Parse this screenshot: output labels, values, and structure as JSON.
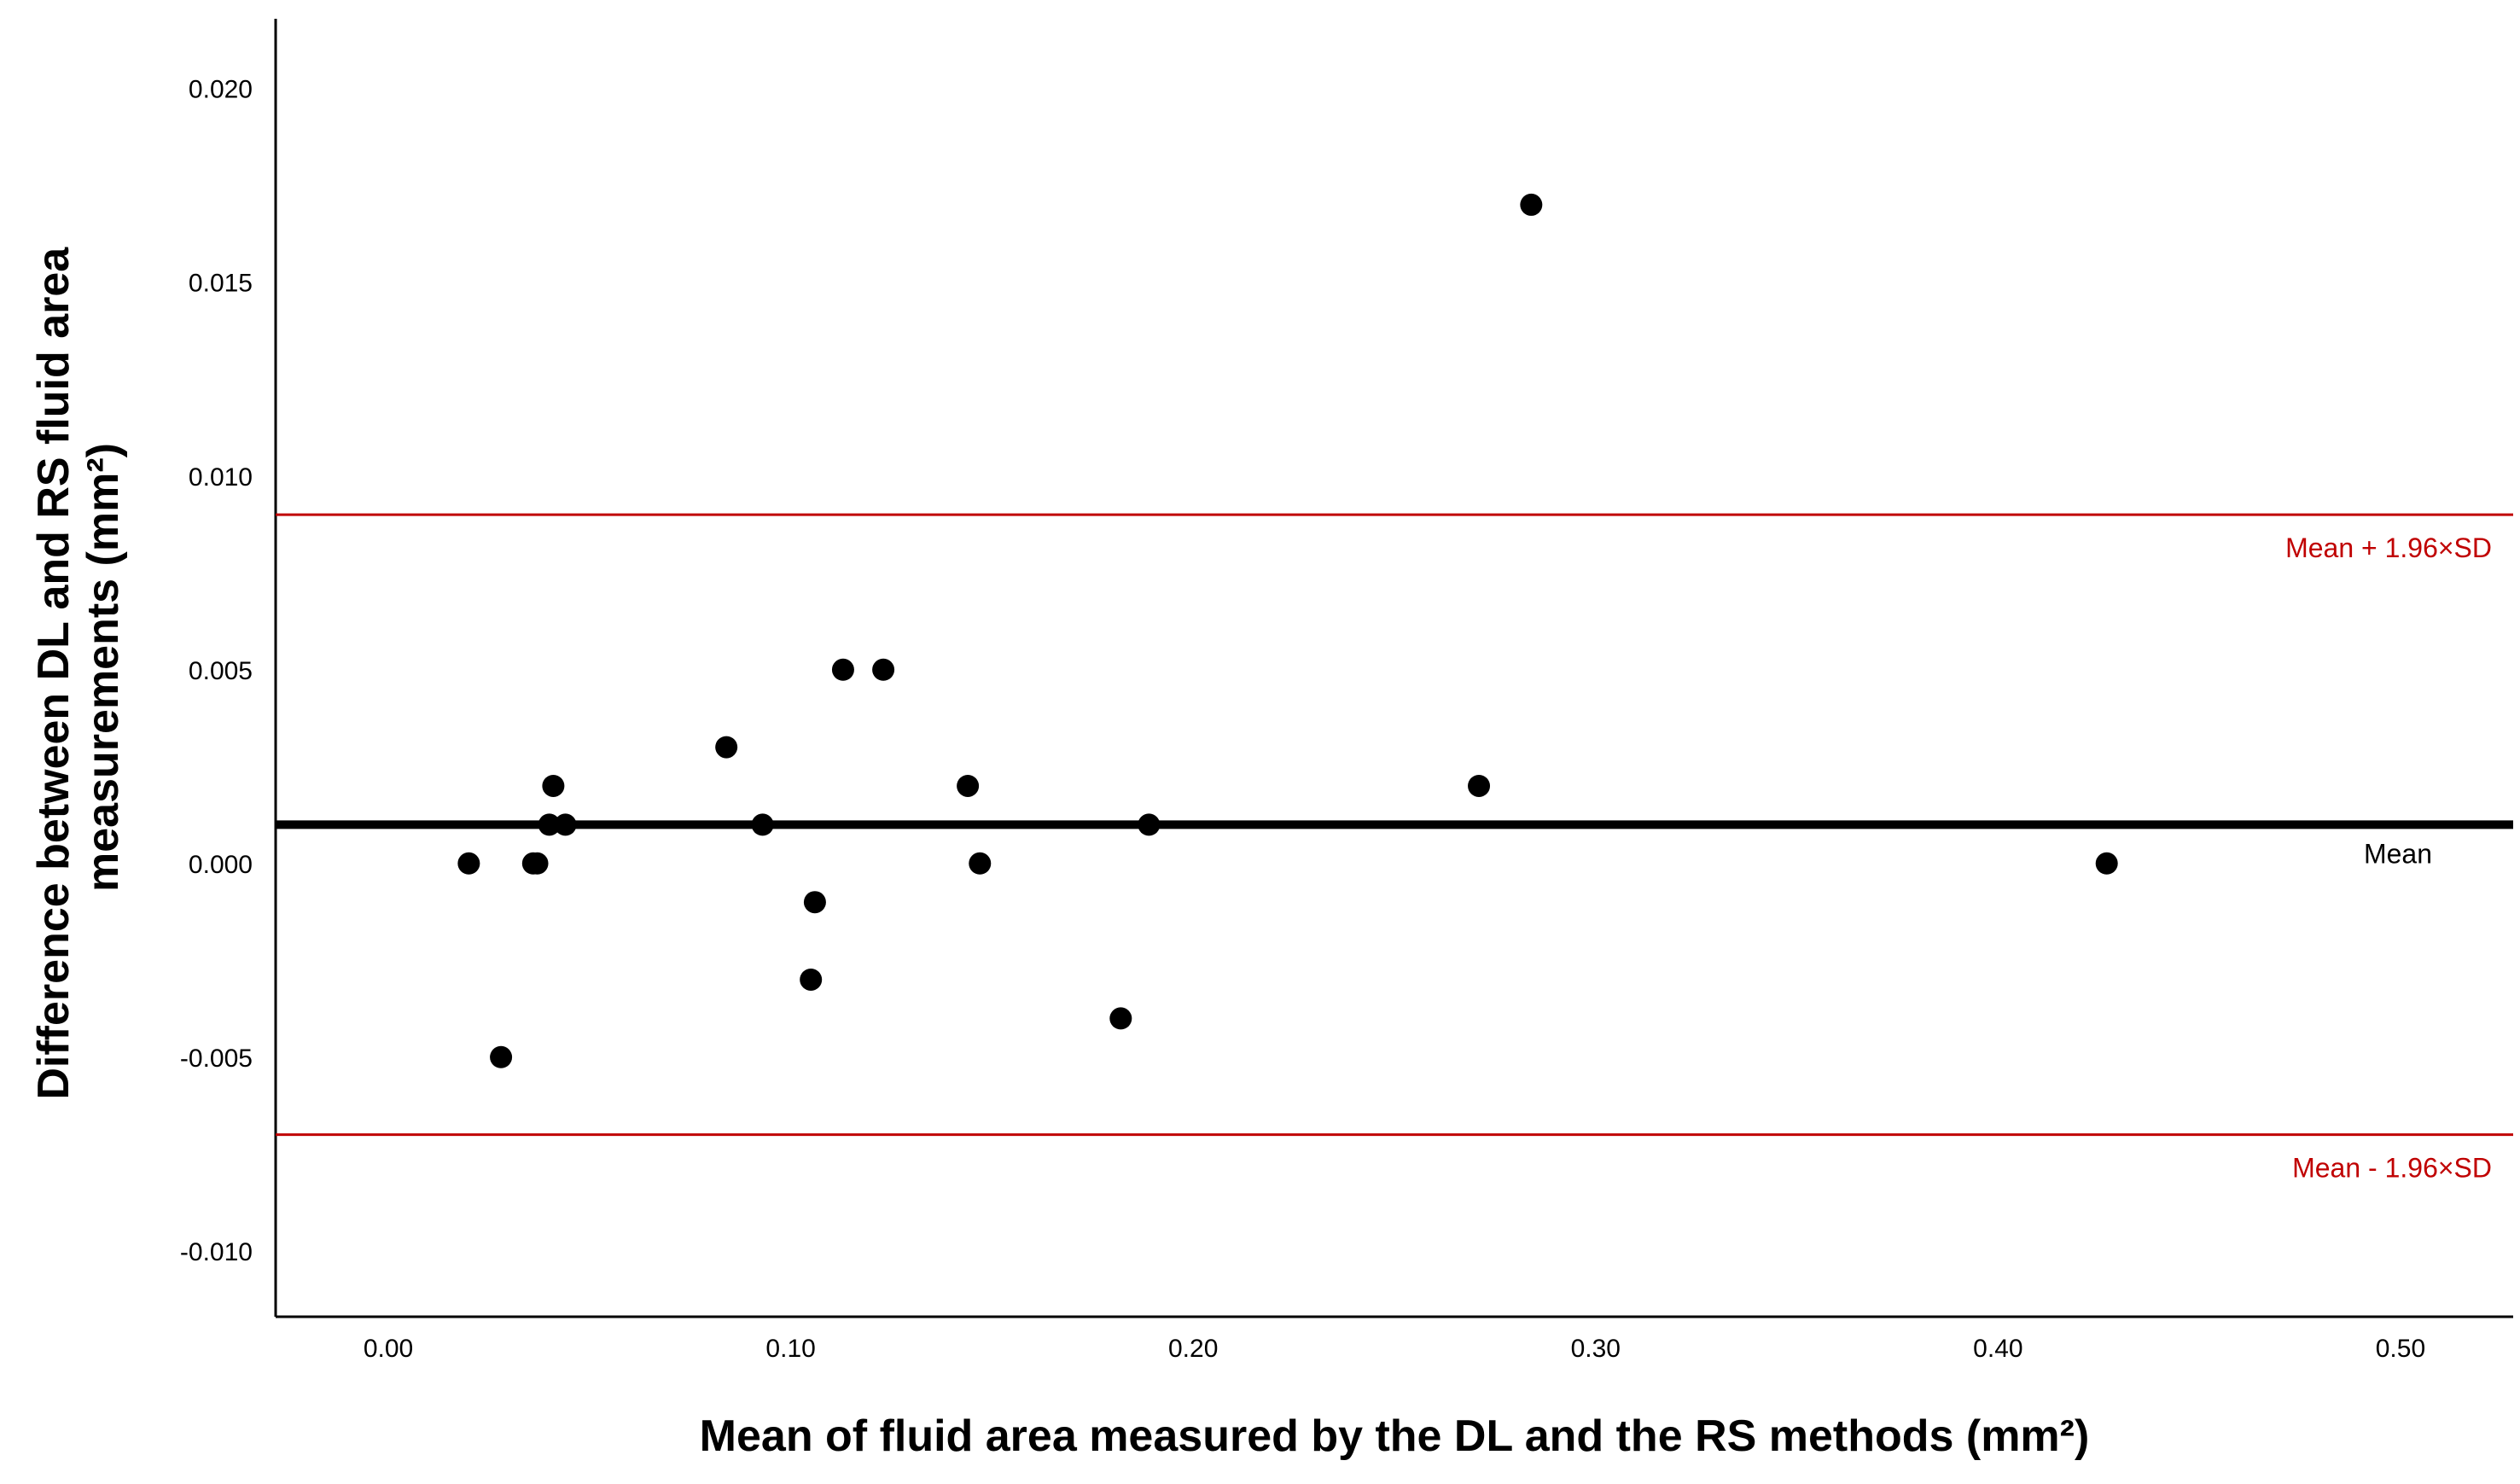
{
  "chart_data": {
    "type": "scatter",
    "title": "",
    "xlabel": "Mean of fluid area measured by the DL and the RS methods (mm²)",
    "ylabel_lines": [
      "Difference between DL and RS fluid area",
      "measurements (mm²)"
    ],
    "xlim": [
      -0.028,
      0.528
    ],
    "ylim": [
      -0.0117,
      0.0218
    ],
    "x_ticks": [
      0.0,
      0.1,
      0.2,
      0.3,
      0.4,
      0.5
    ],
    "x_tick_labels": [
      "0.00",
      "0.10",
      "0.20",
      "0.30",
      "0.40",
      "0.50"
    ],
    "y_ticks": [
      0.02,
      0.015,
      0.01,
      0.005,
      0.0,
      -0.005,
      -0.01
    ],
    "y_tick_labels": [
      "0.020",
      "0.015",
      "0.010",
      "0.005",
      "0.000",
      "-0.005",
      "-0.010"
    ],
    "grid": false,
    "marker_color": "#000000",
    "points": [
      {
        "x": 0.02,
        "y": 0.0
      },
      {
        "x": 0.028,
        "y": -0.005
      },
      {
        "x": 0.036,
        "y": 0.0
      },
      {
        "x": 0.037,
        "y": 0.0
      },
      {
        "x": 0.04,
        "y": 0.001
      },
      {
        "x": 0.041,
        "y": 0.002
      },
      {
        "x": 0.044,
        "y": 0.001
      },
      {
        "x": 0.084,
        "y": 0.003
      },
      {
        "x": 0.093,
        "y": 0.001
      },
      {
        "x": 0.105,
        "y": -0.003
      },
      {
        "x": 0.106,
        "y": -0.001
      },
      {
        "x": 0.113,
        "y": 0.005
      },
      {
        "x": 0.123,
        "y": 0.005
      },
      {
        "x": 0.144,
        "y": 0.002
      },
      {
        "x": 0.147,
        "y": 0.0
      },
      {
        "x": 0.182,
        "y": -0.004
      },
      {
        "x": 0.189,
        "y": 0.001
      },
      {
        "x": 0.271,
        "y": 0.002
      },
      {
        "x": 0.284,
        "y": 0.017
      },
      {
        "x": 0.427,
        "y": 0.0
      }
    ],
    "reference_lines": [
      {
        "name": "Mean + 1.96×SD",
        "y": 0.009,
        "color": "#c00000",
        "label_position": "below-right"
      },
      {
        "name": "Mean",
        "y": 0.001,
        "color": "#000000",
        "label_position": "below-right"
      },
      {
        "name": "Mean - 1.96×SD",
        "y": -0.007,
        "color": "#c00000",
        "label_position": "below-right"
      }
    ]
  }
}
